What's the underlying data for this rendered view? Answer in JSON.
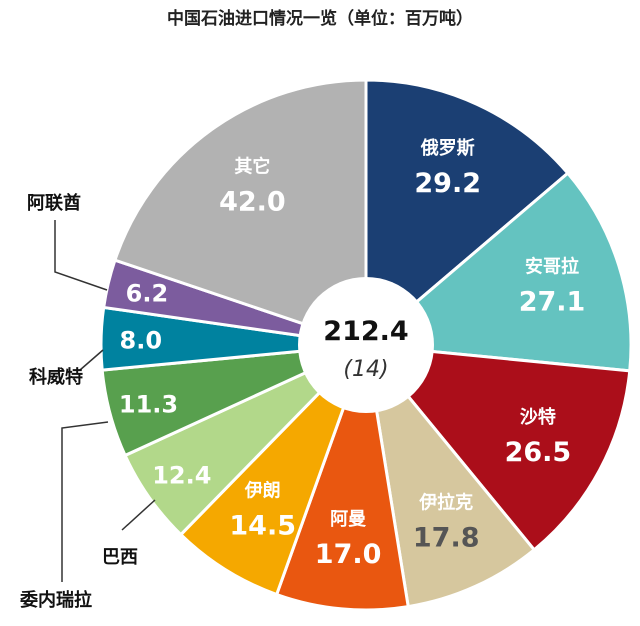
{
  "chart_data": {
    "type": "pie",
    "title": "中国石油进口情况一览（单位：百万吨）",
    "center_total": "212.4",
    "center_sub": "(14)",
    "slices": [
      {
        "label": "俄罗斯",
        "value_text": "29.2",
        "value": 29.2,
        "color": "#1b3f73",
        "label_color": "#ffffff",
        "value_color": "#ffffff",
        "external": false
      },
      {
        "label": "安哥拉",
        "value_text": "27.1",
        "value": 27.1,
        "color": "#64c3c0",
        "label_color": "#ffffff",
        "value_color": "#ffffff",
        "external": false
      },
      {
        "label": "沙特",
        "value_text": "26.5",
        "value": 26.5,
        "color": "#ab0e1a",
        "label_color": "#ffffff",
        "value_color": "#ffffff",
        "external": false
      },
      {
        "label": "伊拉克",
        "value_text": "17.8",
        "value": 17.8,
        "color": "#d6c79e",
        "label_color": "#ffffff",
        "value_color": "#555555",
        "external": false
      },
      {
        "label": "阿曼",
        "value_text": "17.0",
        "value": 17.0,
        "color": "#e95710",
        "label_color": "#ffffff",
        "value_color": "#ffffff",
        "external": false
      },
      {
        "label": "伊朗",
        "value_text": "14.5",
        "value": 14.5,
        "color": "#f5a800",
        "label_color": "#ffffff",
        "value_color": "#ffffff",
        "external": false
      },
      {
        "label": "巴西",
        "value_text": "12.4",
        "value": 12.4,
        "color": "#b2d88a",
        "label_color": "#111111",
        "value_color": "#ffffff",
        "external": true
      },
      {
        "label": "委内瑞拉",
        "value_text": "11.3",
        "value": 11.3,
        "color": "#58a04e",
        "label_color": "#111111",
        "value_color": "#ffffff",
        "external": true
      },
      {
        "label": "科威特",
        "value_text": "8.0",
        "value": 8.0,
        "color": "#00829f",
        "label_color": "#111111",
        "value_color": "#ffffff",
        "external": true
      },
      {
        "label": "阿联酋",
        "value_text": "6.2",
        "value": 6.2,
        "color": "#7c5c9e",
        "label_color": "#111111",
        "value_color": "#ffffff",
        "external": true
      },
      {
        "label": "其它",
        "value_text": "42.0",
        "value": 42.0,
        "color": "#b2b2b2",
        "label_color": "#ffffff",
        "value_color": "#ffffff",
        "external": false
      }
    ]
  }
}
